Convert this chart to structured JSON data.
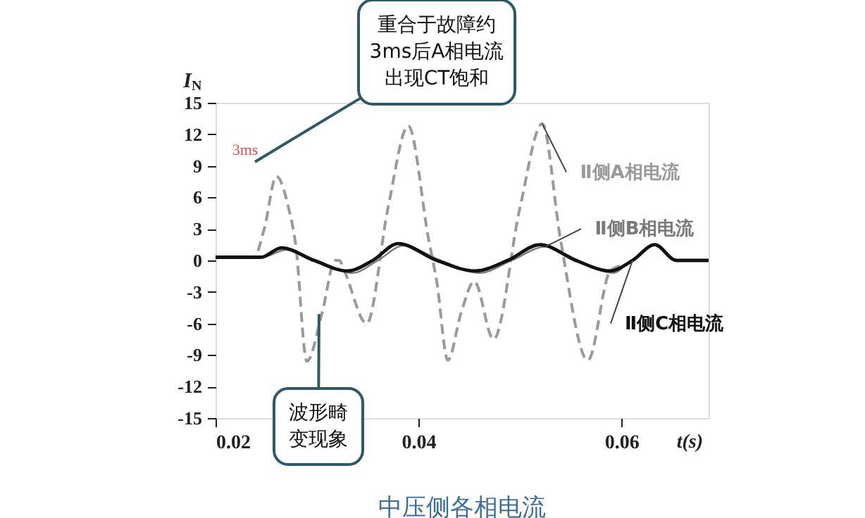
{
  "chart_data": {
    "type": "line",
    "title": "中压侧各相电流",
    "xlabel": "t(s)",
    "ylabel": "I$_{N}$",
    "xlim": [
      0.02,
      0.0686
    ],
    "xticks": [
      0.02,
      0.04,
      0.06
    ],
    "ylim": [
      -15,
      15
    ],
    "yticks": [
      -15,
      -12,
      -9,
      -6,
      -3,
      0,
      3,
      6,
      9,
      12,
      15
    ],
    "grid": false,
    "legend": false,
    "series": [
      {
        "name": "Ⅱ侧A相电流",
        "color": "#9a9a9a",
        "line_style": "dashed",
        "x": [
          0.02,
          0.0238,
          0.0248,
          0.026,
          0.0272,
          0.0279,
          0.029,
          0.0305,
          0.0318,
          0.0322,
          0.0327,
          0.0349,
          0.037,
          0.039,
          0.041,
          0.0418,
          0.0429,
          0.0442,
          0.0455,
          0.0474,
          0.05,
          0.0522,
          0.054,
          0.0567,
          0.0589,
          0.06
        ],
        "values": [
          0.3,
          0.3,
          3,
          8,
          5,
          1.5,
          -9.6,
          -5,
          0,
          0,
          -1,
          -6,
          5,
          12.8,
          2,
          -2,
          -9.5,
          -5,
          -2,
          -7.5,
          5,
          13,
          2,
          -9.5,
          -1,
          -0.5
        ]
      },
      {
        "name": "Ⅱ侧B相电流",
        "color": "#7a7a7a",
        "line_style": "solid",
        "x": [
          0.02,
          0.0245,
          0.027,
          0.03,
          0.0335,
          0.036,
          0.0385,
          0.0422,
          0.046,
          0.0492,
          0.0525,
          0.0558,
          0.0592,
          0.06
        ],
        "values": [
          0.3,
          0.3,
          1,
          0,
          -1.2,
          0,
          1.4,
          0,
          -1.2,
          0,
          1.3,
          0,
          -1.2,
          -0.8
        ]
      },
      {
        "name": "Ⅱ侧C相电流",
        "color": "#111111",
        "line_style": "solid",
        "x": [
          0.02,
          0.0245,
          0.0265,
          0.0297,
          0.033,
          0.0355,
          0.038,
          0.0418,
          0.0456,
          0.0488,
          0.052,
          0.0555,
          0.0589,
          0.0611,
          0.0633,
          0.0654,
          0.0686
        ],
        "values": [
          0.3,
          0.3,
          1.2,
          0,
          -1,
          0,
          1.6,
          0,
          -1,
          0,
          1.5,
          0,
          -1,
          0,
          1.5,
          0,
          0
        ]
      }
    ],
    "annotations": [
      "3ms",
      "重合于故障约3ms后A相电流出现CT饱和",
      {
        "text": "波形畸变现象",
        "x": 0.0302,
        "y": -5.1
      }
    ]
  }
}
